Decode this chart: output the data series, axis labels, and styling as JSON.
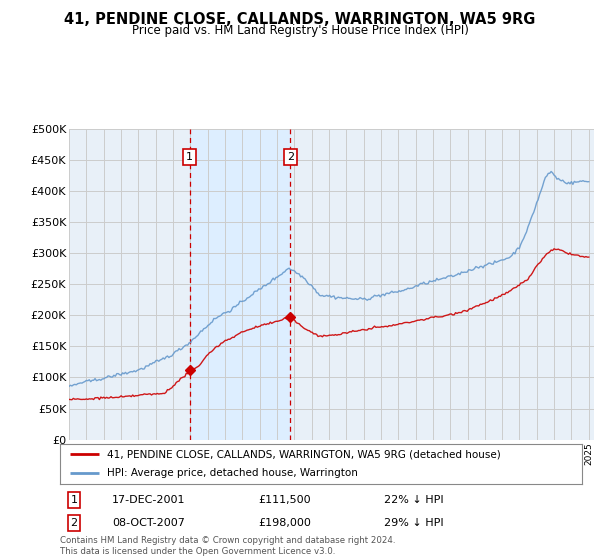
{
  "title": "41, PENDINE CLOSE, CALLANDS, WARRINGTON, WA5 9RG",
  "subtitle": "Price paid vs. HM Land Registry's House Price Index (HPI)",
  "ylim": [
    0,
    500000
  ],
  "ytick_vals": [
    0,
    50000,
    100000,
    150000,
    200000,
    250000,
    300000,
    350000,
    400000,
    450000,
    500000
  ],
  "x_start_year": 1995,
  "x_end_year": 2025,
  "plot_bg": "#ffffff",
  "chart_bg": "#e8f0f8",
  "span_bg": "#ddeeff",
  "hpi_color": "#6699cc",
  "price_color": "#cc0000",
  "vline_color": "#cc0000",
  "sale1_year": 2001.96,
  "sale1_price": 111500,
  "sale2_year": 2007.77,
  "sale2_price": 198000,
  "legend1_label": "41, PENDINE CLOSE, CALLANDS, WARRINGTON, WA5 9RG (detached house)",
  "legend2_label": "HPI: Average price, detached house, Warrington",
  "note1_num": "1",
  "note1_date": "17-DEC-2001",
  "note1_price": "£111,500",
  "note1_hpi": "22% ↓ HPI",
  "note2_num": "2",
  "note2_date": "08-OCT-2007",
  "note2_price": "£198,000",
  "note2_hpi": "29% ↓ HPI",
  "footer": "Contains HM Land Registry data © Crown copyright and database right 2024.\nThis data is licensed under the Open Government Licence v3.0."
}
